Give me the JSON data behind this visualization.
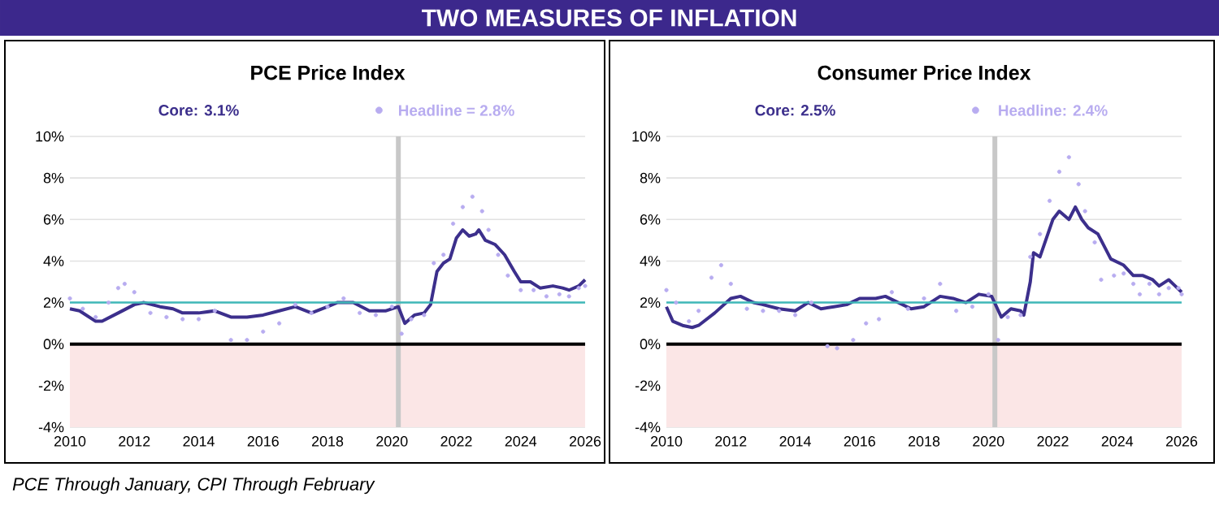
{
  "chart_data": [
    {
      "type": "line",
      "title": "PCE Price Index",
      "annotations": [
        "TWO MEASURES OF INFLATION",
        "PCE Through January, CPI Through February"
      ],
      "xlim": [
        2010,
        2026
      ],
      "xticks": [
        2010,
        2012,
        2014,
        2016,
        2018,
        2020,
        2022,
        2024,
        2026
      ],
      "ylim": [
        -4,
        10
      ],
      "yticks": [
        {
          "value": -4,
          "label": "-4%"
        },
        {
          "value": -2,
          "label": "-2%"
        },
        {
          "value": 0,
          "label": "0%"
        },
        {
          "value": 2,
          "label": "2%"
        },
        {
          "value": 4,
          "label": "4%"
        },
        {
          "value": 6,
          "label": "6%"
        },
        {
          "value": 8,
          "label": "8%"
        },
        {
          "value": 10,
          "label": "10%"
        }
      ],
      "grid": "y",
      "legend": "top",
      "ref_lines": [
        {
          "axis": "y",
          "value": 0,
          "color": "#000000"
        },
        {
          "axis": "y",
          "value": 2,
          "color": "#3fb8b8"
        },
        {
          "axis": "x",
          "value": 2020.2,
          "color": "#c8c8c8"
        }
      ],
      "bands": [
        {
          "axis": "y",
          "from": -4,
          "to": 0,
          "color": "#fbe6e6"
        }
      ],
      "series": [
        {
          "name": "Headline = 2.8%",
          "type": "scatter",
          "marker": "circle",
          "color": "#b8acf0",
          "x": [
            2010.0,
            2010.4,
            2010.8,
            2011.2,
            2011.5,
            2011.7,
            2012.0,
            2012.5,
            2013.0,
            2013.5,
            2014.0,
            2014.5,
            2015.0,
            2015.5,
            2016.0,
            2016.5,
            2017.0,
            2017.5,
            2018.0,
            2018.5,
            2019.0,
            2019.5,
            2020.0,
            2020.3,
            2020.6,
            2021.0,
            2021.3,
            2021.6,
            2021.9,
            2022.2,
            2022.5,
            2022.8,
            2023.0,
            2023.3,
            2023.6,
            2024.0,
            2024.4,
            2024.8,
            2025.2,
            2025.5,
            2025.8,
            2026.0
          ],
          "values": [
            2.2,
            1.7,
            1.3,
            2.0,
            2.7,
            2.9,
            2.5,
            1.5,
            1.3,
            1.2,
            1.2,
            1.6,
            0.2,
            0.2,
            0.6,
            1.0,
            1.9,
            1.5,
            1.8,
            2.2,
            1.5,
            1.4,
            1.8,
            0.5,
            1.2,
            1.4,
            3.9,
            4.3,
            5.8,
            6.6,
            7.1,
            6.4,
            5.5,
            4.3,
            3.3,
            2.6,
            2.6,
            2.3,
            2.4,
            2.3,
            2.7,
            2.8
          ]
        },
        {
          "name": "Core: 3.1%",
          "type": "line",
          "color": "#3c2f8c",
          "x": [
            2010.0,
            2010.3,
            2010.8,
            2011.0,
            2011.5,
            2012.0,
            2012.3,
            2012.8,
            2013.2,
            2013.5,
            2014.0,
            2014.5,
            2015.0,
            2015.5,
            2016.0,
            2016.5,
            2017.0,
            2017.5,
            2018.0,
            2018.3,
            2018.8,
            2019.3,
            2019.8,
            2020.2,
            2020.4,
            2020.7,
            2021.0,
            2021.2,
            2021.4,
            2021.6,
            2021.8,
            2022.0,
            2022.2,
            2022.4,
            2022.6,
            2022.7,
            2022.9,
            2023.2,
            2023.5,
            2023.8,
            2024.0,
            2024.3,
            2024.6,
            2025.0,
            2025.3,
            2025.5,
            2025.8,
            2026.0
          ],
          "values": [
            1.7,
            1.6,
            1.1,
            1.1,
            1.5,
            1.9,
            2.0,
            1.8,
            1.7,
            1.5,
            1.5,
            1.6,
            1.3,
            1.3,
            1.4,
            1.6,
            1.8,
            1.5,
            1.8,
            2.0,
            2.0,
            1.6,
            1.6,
            1.8,
            1.0,
            1.4,
            1.5,
            1.9,
            3.5,
            3.9,
            4.1,
            5.1,
            5.5,
            5.2,
            5.3,
            5.5,
            5.0,
            4.8,
            4.3,
            3.5,
            3.0,
            3.0,
            2.7,
            2.8,
            2.7,
            2.6,
            2.8,
            3.1
          ]
        }
      ]
    },
    {
      "type": "line",
      "title": "Consumer Price Index",
      "xlim": [
        2010,
        2026
      ],
      "xticks": [
        2010,
        2012,
        2014,
        2016,
        2018,
        2020,
        2022,
        2024,
        2026
      ],
      "ylim": [
        -4,
        10
      ],
      "yticks": [
        {
          "value": -4,
          "label": "-4%"
        },
        {
          "value": -2,
          "label": "-2%"
        },
        {
          "value": 0,
          "label": "0%"
        },
        {
          "value": 2,
          "label": "2%"
        },
        {
          "value": 4,
          "label": "4%"
        },
        {
          "value": 6,
          "label": "6%"
        },
        {
          "value": 8,
          "label": "8%"
        },
        {
          "value": 10,
          "label": "10%"
        }
      ],
      "grid": "y",
      "legend": "top",
      "ref_lines": [
        {
          "axis": "y",
          "value": 0,
          "color": "#000000"
        },
        {
          "axis": "y",
          "value": 2,
          "color": "#3fb8b8"
        },
        {
          "axis": "x",
          "value": 2020.2,
          "color": "#c8c8c8"
        }
      ],
      "bands": [
        {
          "axis": "y",
          "from": -4,
          "to": 0,
          "color": "#fbe6e6"
        }
      ],
      "series": [
        {
          "name": "Headline: 2.4%",
          "type": "scatter",
          "marker": "circle",
          "color": "#b8acf0",
          "x": [
            2010.0,
            2010.3,
            2010.7,
            2011.0,
            2011.4,
            2011.7,
            2012.0,
            2012.5,
            2013.0,
            2013.5,
            2014.0,
            2014.5,
            2015.0,
            2015.3,
            2015.8,
            2016.2,
            2016.6,
            2017.0,
            2017.5,
            2018.0,
            2018.5,
            2019.0,
            2019.5,
            2020.0,
            2020.3,
            2020.6,
            2021.0,
            2021.3,
            2021.6,
            2021.9,
            2022.2,
            2022.5,
            2022.8,
            2023.0,
            2023.3,
            2023.5,
            2023.9,
            2024.2,
            2024.5,
            2024.7,
            2025.0,
            2025.3,
            2025.6,
            2025.9,
            2026.0
          ],
          "values": [
            2.6,
            2.0,
            1.1,
            1.6,
            3.2,
            3.8,
            2.9,
            1.7,
            1.6,
            1.6,
            1.4,
            2.0,
            -0.1,
            -0.2,
            0.2,
            1.0,
            1.2,
            2.5,
            1.7,
            2.2,
            2.9,
            1.6,
            1.8,
            2.4,
            0.2,
            1.3,
            1.4,
            4.2,
            5.3,
            6.9,
            8.3,
            9.0,
            7.7,
            6.4,
            4.9,
            3.1,
            3.3,
            3.4,
            2.9,
            2.4,
            2.9,
            2.4,
            2.7,
            2.7,
            2.4
          ]
        },
        {
          "name": "Core: 2.5%",
          "type": "line",
          "color": "#3c2f8c",
          "x": [
            2010.0,
            2010.2,
            2010.5,
            2010.8,
            2011.0,
            2011.5,
            2012.0,
            2012.3,
            2012.7,
            2013.0,
            2013.5,
            2014.0,
            2014.4,
            2014.8,
            2015.2,
            2015.6,
            2016.0,
            2016.5,
            2016.8,
            2017.2,
            2017.6,
            2018.0,
            2018.5,
            2018.9,
            2019.3,
            2019.7,
            2020.1,
            2020.4,
            2020.7,
            2021.0,
            2021.1,
            2021.3,
            2021.4,
            2021.6,
            2022.0,
            2022.2,
            2022.5,
            2022.7,
            2022.9,
            2023.1,
            2023.4,
            2023.8,
            2024.2,
            2024.5,
            2024.8,
            2025.1,
            2025.3,
            2025.6,
            2025.8,
            2026.0
          ],
          "values": [
            1.8,
            1.1,
            0.9,
            0.8,
            0.9,
            1.5,
            2.2,
            2.3,
            2.0,
            1.9,
            1.7,
            1.6,
            2.0,
            1.7,
            1.8,
            1.9,
            2.2,
            2.2,
            2.3,
            2.0,
            1.7,
            1.8,
            2.3,
            2.2,
            2.0,
            2.4,
            2.3,
            1.3,
            1.7,
            1.6,
            1.4,
            3.0,
            4.4,
            4.2,
            6.0,
            6.4,
            6.0,
            6.6,
            6.0,
            5.6,
            5.3,
            4.1,
            3.8,
            3.3,
            3.3,
            3.1,
            2.8,
            3.1,
            2.8,
            2.5
          ]
        }
      ]
    }
  ]
}
